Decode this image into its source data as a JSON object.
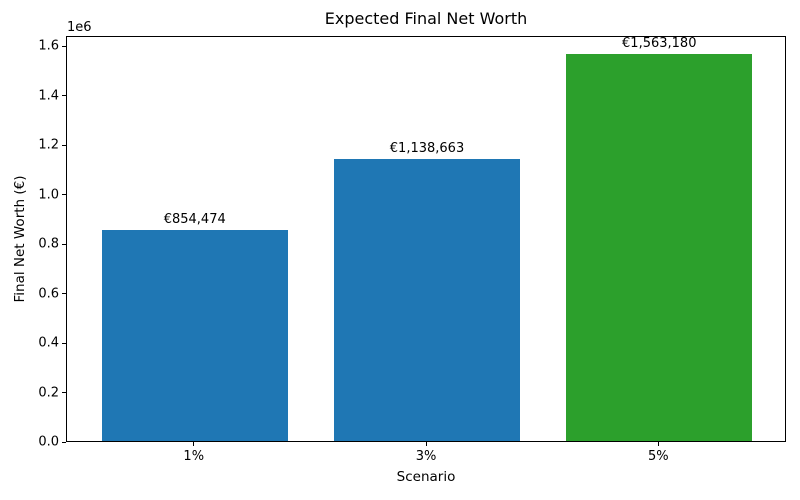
{
  "chart_data": {
    "type": "bar",
    "title": "Expected Final Net Worth",
    "xlabel": "Scenario",
    "ylabel": "Final Net Worth (€)",
    "y_offset_label": "1e6",
    "categories": [
      "1%",
      "3%",
      "5%"
    ],
    "values": [
      854474,
      1138663,
      1563180
    ],
    "bar_labels": [
      "€854,474",
      "€1,138,663",
      "€1,563,180"
    ],
    "bar_colors": [
      "#1f77b4",
      "#1f77b4",
      "#2ca02c"
    ],
    "ylim": [
      0,
      1641339
    ],
    "xlim": [
      -0.55,
      2.55
    ],
    "bar_width": 0.8,
    "yticks": [
      0,
      200000,
      400000,
      600000,
      800000,
      1000000,
      1200000,
      1400000,
      1600000
    ],
    "ytick_labels": [
      "0.0",
      "0.2",
      "0.4",
      "0.6",
      "0.8",
      "1.0",
      "1.2",
      "1.4",
      "1.6"
    ],
    "grid": false,
    "legend": false,
    "background_color": "#ffffff",
    "spine_color": "#000000"
  }
}
